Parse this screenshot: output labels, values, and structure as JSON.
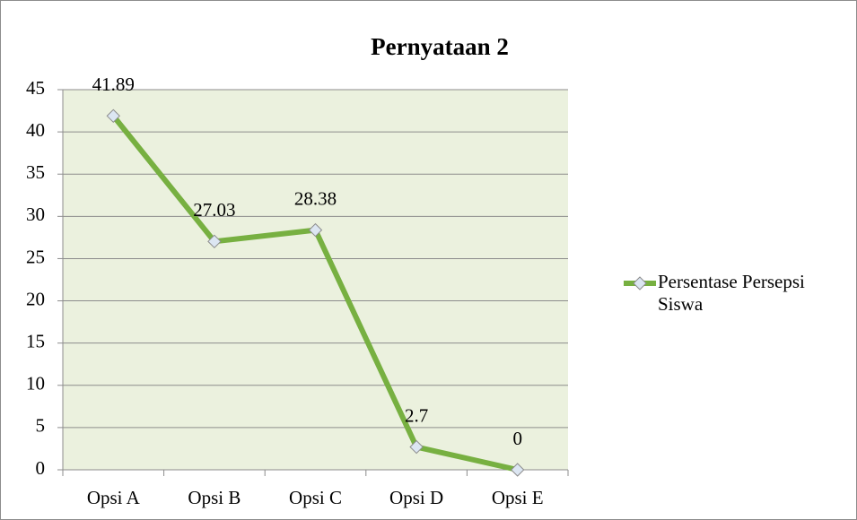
{
  "chart_data": {
    "type": "line",
    "title": "Pernyataan 2",
    "categories": [
      "Opsi A",
      "Opsi B",
      "Opsi C",
      "Opsi D",
      "Opsi E"
    ],
    "series": [
      {
        "name": "Persentase Persepsi Siswa",
        "color": "#77b041",
        "values": [
          41.89,
          27.03,
          28.38,
          2.7,
          0
        ]
      }
    ],
    "ylim": [
      0,
      45
    ],
    "yticks": [
      0,
      5,
      10,
      15,
      20,
      25,
      30,
      35,
      40,
      45
    ],
    "grid": true,
    "legend": "right"
  }
}
